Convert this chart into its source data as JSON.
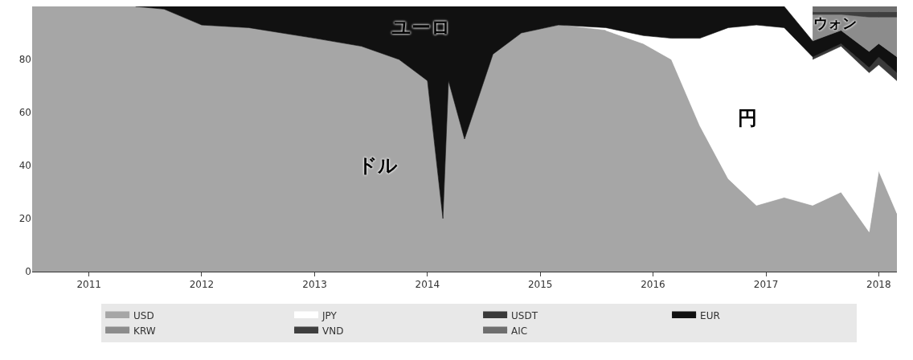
{
  "chart_data": {
    "type": "area",
    "stacked": true,
    "x": [
      "2010-07",
      "2011-06",
      "2011-09",
      "2012-01",
      "2012-06",
      "2013-01",
      "2013-06",
      "2013-10",
      "2014-01",
      "2014-02-20",
      "2014-03-10",
      "2014-05",
      "2014-08",
      "2014-11",
      "2015-03",
      "2015-08",
      "2015-12",
      "2016-03",
      "2016-06",
      "2016-09",
      "2016-12",
      "2017-03",
      "2017-06",
      "2017-09",
      "2017-12",
      "2018-01",
      "2018-03"
    ],
    "series": [
      {
        "name": "USD",
        "color": "#a6a6a6",
        "values": [
          100,
          100,
          99,
          93,
          92,
          88,
          85,
          80,
          72,
          20,
          72,
          50,
          82,
          90,
          93,
          91,
          86,
          80,
          55,
          35,
          25,
          28,
          25,
          30,
          15,
          38,
          22
        ]
      },
      {
        "name": "JPY",
        "color": "#ffffff",
        "values": [
          null,
          null,
          null,
          null,
          null,
          null,
          null,
          null,
          null,
          null,
          null,
          null,
          null,
          null,
          null,
          1,
          3,
          8,
          33,
          57,
          68,
          64,
          55,
          55,
          60,
          40,
          50
        ]
      },
      {
        "name": "USDT",
        "color": "#3a3a3a",
        "values": [
          null,
          null,
          null,
          null,
          null,
          null,
          null,
          null,
          null,
          null,
          null,
          null,
          null,
          null,
          null,
          null,
          null,
          null,
          null,
          null,
          null,
          null,
          1,
          1,
          2,
          3,
          3
        ]
      },
      {
        "name": "EUR",
        "color": "#111111",
        "values": [
          null,
          0,
          1,
          7,
          8,
          12,
          15,
          20,
          28,
          80,
          28,
          50,
          18,
          10,
          7,
          8,
          11,
          12,
          12,
          8,
          7,
          8,
          6,
          5,
          6,
          5,
          6
        ]
      },
      {
        "name": "KRW",
        "color": "#8c8c8c",
        "values": [
          null,
          null,
          null,
          null,
          null,
          null,
          null,
          null,
          null,
          null,
          null,
          null,
          null,
          null,
          null,
          null,
          null,
          null,
          null,
          null,
          null,
          null,
          10,
          6,
          13,
          10,
          15
        ]
      },
      {
        "name": "VND",
        "color": "#3f3f3f",
        "values": [
          null,
          null,
          null,
          null,
          null,
          null,
          null,
          null,
          null,
          null,
          null,
          null,
          null,
          null,
          null,
          null,
          null,
          null,
          null,
          null,
          null,
          null,
          1,
          1,
          2,
          2,
          2
        ]
      },
      {
        "name": "AIC",
        "color": "#6e6e6e",
        "values": [
          null,
          null,
          null,
          null,
          null,
          null,
          null,
          null,
          null,
          null,
          null,
          null,
          null,
          null,
          null,
          null,
          null,
          null,
          null,
          null,
          null,
          null,
          2,
          2,
          2,
          2,
          2
        ]
      }
    ],
    "xlim": [
      "2010-07",
      "2018-03"
    ],
    "xticks": [
      "2011",
      "2012",
      "2013",
      "2014",
      "2015",
      "2016",
      "2017",
      "2018"
    ],
    "ylim": [
      0,
      100
    ],
    "yticks": [
      0,
      20,
      40,
      60,
      80
    ],
    "grid": "x",
    "legend": "bottom",
    "annotations": [
      "ドル",
      "ユーロ",
      "円",
      "ウォン"
    ]
  }
}
